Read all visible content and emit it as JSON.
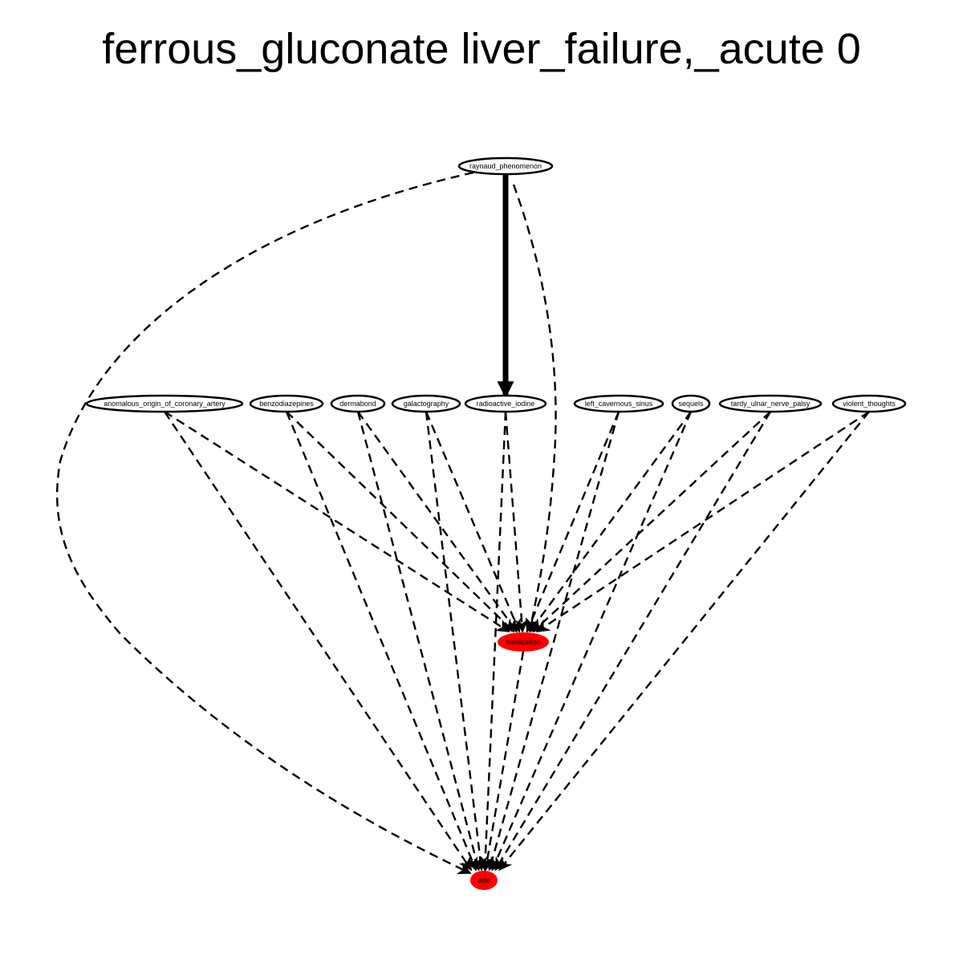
{
  "title": "ferrous_gluconate liver_failure,_acute 0",
  "colors": {
    "highlight_node": "#ff0000",
    "plain_node": "#ffffff",
    "stroke": "#000000"
  },
  "nodes": [
    {
      "id": "raynaud_phenomenon",
      "label": "raynaud_phenomenon",
      "highlight": false
    },
    {
      "id": "anomalous_origin_of_coronary_artery",
      "label": "anomalous_origin_of_coronary_artery",
      "highlight": false
    },
    {
      "id": "benzodiazepines",
      "label": "benzodiazepines",
      "highlight": false
    },
    {
      "id": "dermabond",
      "label": "dermabond",
      "highlight": false
    },
    {
      "id": "galactography",
      "label": "galactography",
      "highlight": false
    },
    {
      "id": "radioactive_iodine",
      "label": "radioactive_iodine",
      "highlight": false
    },
    {
      "id": "left_cavernous_sinus",
      "label": "left_cavernous_sinus",
      "highlight": false
    },
    {
      "id": "sequels",
      "label": "sequels",
      "highlight": false
    },
    {
      "id": "tardy_ulnar_nerve_palsy",
      "label": "tardy_ulnar_nerve_palsy",
      "highlight": false
    },
    {
      "id": "violent_thoughts",
      "label": "violent_thoughts",
      "highlight": false
    },
    {
      "id": "medication",
      "label": "medication",
      "highlight": true
    },
    {
      "id": "ade",
      "label": "ade",
      "highlight": true
    }
  ],
  "edges": [
    {
      "from": "raynaud_phenomenon",
      "to": "radioactive_iodine",
      "style": "solid-bold"
    },
    {
      "from": "raynaud_phenomenon",
      "to": "ade",
      "style": "dashed"
    },
    {
      "from": "raynaud_phenomenon",
      "to": "medication",
      "style": "dashed"
    },
    {
      "from": "anomalous_origin_of_coronary_artery",
      "to": "medication",
      "style": "dashed"
    },
    {
      "from": "anomalous_origin_of_coronary_artery",
      "to": "ade",
      "style": "dashed"
    },
    {
      "from": "benzodiazepines",
      "to": "medication",
      "style": "dashed"
    },
    {
      "from": "benzodiazepines",
      "to": "ade",
      "style": "dashed"
    },
    {
      "from": "dermabond",
      "to": "medication",
      "style": "dashed"
    },
    {
      "from": "dermabond",
      "to": "ade",
      "style": "dashed"
    },
    {
      "from": "galactography",
      "to": "medication",
      "style": "dashed"
    },
    {
      "from": "galactography",
      "to": "ade",
      "style": "dashed"
    },
    {
      "from": "radioactive_iodine",
      "to": "medication",
      "style": "dashed"
    },
    {
      "from": "radioactive_iodine",
      "to": "ade",
      "style": "dashed"
    },
    {
      "from": "left_cavernous_sinus",
      "to": "medication",
      "style": "dashed"
    },
    {
      "from": "left_cavernous_sinus",
      "to": "ade",
      "style": "dashed"
    },
    {
      "from": "sequels",
      "to": "medication",
      "style": "dashed"
    },
    {
      "from": "sequels",
      "to": "ade",
      "style": "dashed"
    },
    {
      "from": "tardy_ulnar_nerve_palsy",
      "to": "medication",
      "style": "dashed"
    },
    {
      "from": "tardy_ulnar_nerve_palsy",
      "to": "ade",
      "style": "dashed"
    },
    {
      "from": "violent_thoughts",
      "to": "medication",
      "style": "dashed"
    },
    {
      "from": "violent_thoughts",
      "to": "ade",
      "style": "dashed"
    },
    {
      "from": "medication",
      "to": "ade",
      "style": "dashed"
    }
  ]
}
